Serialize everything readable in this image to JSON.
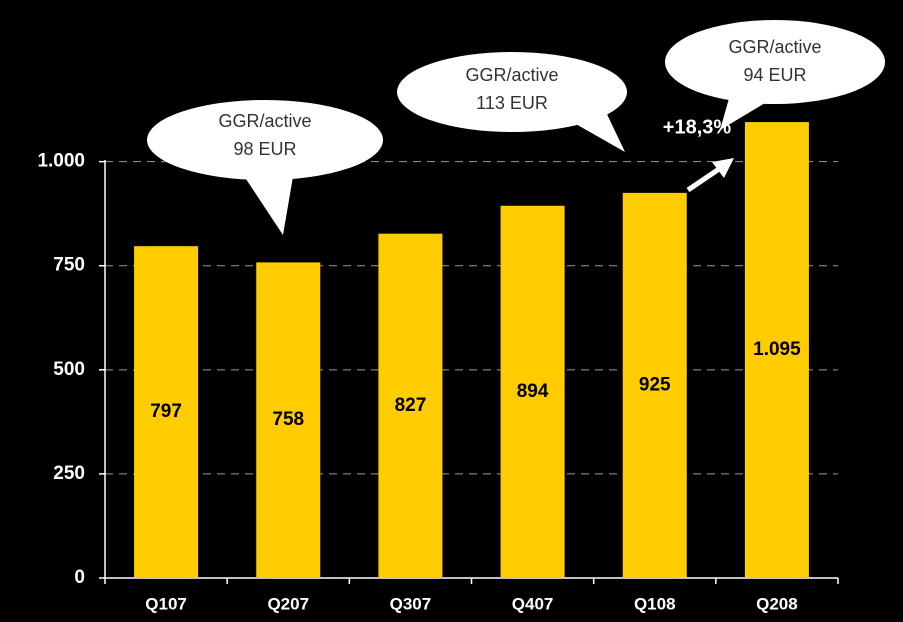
{
  "chart_data": {
    "type": "bar",
    "categories": [
      "Q107",
      "Q207",
      "Q307",
      "Q407",
      "Q108",
      "Q208"
    ],
    "values": [
      797,
      758,
      827,
      894,
      925,
      1095
    ],
    "value_labels": [
      "797",
      "758",
      "827",
      "894",
      "925",
      "1.095"
    ],
    "color": "#ffcc00",
    "ylim": [
      0,
      1100
    ],
    "yticks": [
      0,
      250,
      500,
      750,
      {
        "value": 1000,
        "label": "1.000"
      }
    ],
    "grid": true,
    "annotations": [
      {
        "lines": [
          "GGR/active",
          "98 EUR"
        ]
      },
      {
        "lines": [
          "GGR/active",
          "113 EUR"
        ]
      },
      {
        "lines": [
          "GGR/active",
          "94 EUR"
        ]
      },
      {
        "text": "+18,3%"
      }
    ]
  }
}
